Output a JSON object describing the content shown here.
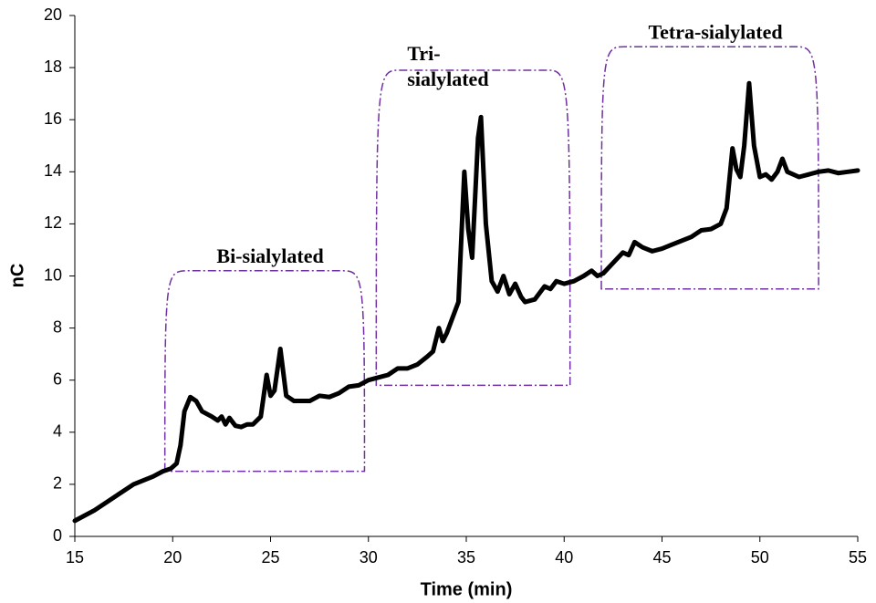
{
  "chart_data": {
    "type": "line",
    "xlabel": "Time (min)",
    "ylabel": "nC",
    "xlim": [
      15,
      55
    ],
    "xticks": [
      15,
      20,
      25,
      30,
      35,
      40,
      45,
      50,
      55
    ],
    "ylim": [
      0,
      20
    ],
    "yticks": [
      0,
      2,
      4,
      6,
      8,
      10,
      12,
      14,
      16,
      18,
      20
    ],
    "color": "#000000",
    "region_color": "#7030a0",
    "x": [
      15,
      16,
      17,
      18,
      19,
      19.5,
      19.9,
      20.2,
      20.4,
      20.6,
      20.9,
      21.2,
      21.5,
      22,
      22.3,
      22.5,
      22.7,
      22.9,
      23.2,
      23.5,
      23.8,
      24.1,
      24.5,
      24.8,
      25,
      25.2,
      25.5,
      25.8,
      26.2,
      27,
      27.5,
      28,
      28.5,
      29,
      29.5,
      30,
      30.5,
      31,
      31.5,
      32,
      32.5,
      33,
      33.3,
      33.6,
      33.8,
      34,
      34.3,
      34.6,
      34.9,
      35.1,
      35.3,
      35.6,
      35.75,
      36,
      36.3,
      36.6,
      36.9,
      37.2,
      37.5,
      37.8,
      38,
      38.5,
      39,
      39.3,
      39.6,
      40,
      40.5,
      41,
      41.4,
      41.7,
      42,
      42.5,
      43,
      43.3,
      43.6,
      44,
      44.5,
      45,
      45.5,
      46,
      46.5,
      47,
      47.5,
      48,
      48.3,
      48.6,
      48.8,
      49,
      49.2,
      49.45,
      49.7,
      50,
      50.3,
      50.6,
      50.9,
      51.15,
      51.4,
      52,
      52.5,
      53,
      53.5,
      54,
      54.5,
      55
    ],
    "values": [
      0.6,
      1.0,
      1.5,
      2.0,
      2.3,
      2.5,
      2.6,
      2.8,
      3.5,
      4.8,
      5.35,
      5.2,
      4.8,
      4.6,
      4.45,
      4.6,
      4.3,
      4.55,
      4.25,
      4.2,
      4.3,
      4.3,
      4.6,
      6.2,
      5.4,
      5.6,
      7.2,
      5.4,
      5.2,
      5.2,
      5.4,
      5.35,
      5.5,
      5.75,
      5.8,
      6.0,
      6.1,
      6.2,
      6.45,
      6.45,
      6.6,
      6.9,
      7.1,
      8.0,
      7.5,
      7.8,
      8.4,
      9.0,
      14.0,
      11.8,
      10.7,
      15.3,
      16.1,
      12,
      9.8,
      9.4,
      10.0,
      9.3,
      9.7,
      9.2,
      9.0,
      9.1,
      9.6,
      9.5,
      9.8,
      9.7,
      9.8,
      10.0,
      10.2,
      10.0,
      10.1,
      10.5,
      10.9,
      10.8,
      11.3,
      11.1,
      10.95,
      11.05,
      11.2,
      11.35,
      11.5,
      11.75,
      11.8,
      12.0,
      12.6,
      14.9,
      14.1,
      13.8,
      15.0,
      17.4,
      15.0,
      13.8,
      13.9,
      13.7,
      14.0,
      14.5,
      14.0,
      13.8,
      13.9,
      14.0,
      14.05,
      13.95,
      14.0,
      14.05
    ],
    "regions": [
      {
        "lines": [
          "Bi-sialylated"
        ],
        "x": [
          19.6,
          29.8
        ],
        "y": [
          2.5,
          10.2
        ]
      },
      {
        "lines": [
          "Tri-",
          "sialylated"
        ],
        "x": [
          30.4,
          40.3
        ],
        "y": [
          5.8,
          17.9
        ]
      },
      {
        "lines": [
          "Tetra-sialylated"
        ],
        "x": [
          41.9,
          53.0
        ],
        "y": [
          9.5,
          18.8
        ]
      }
    ]
  }
}
